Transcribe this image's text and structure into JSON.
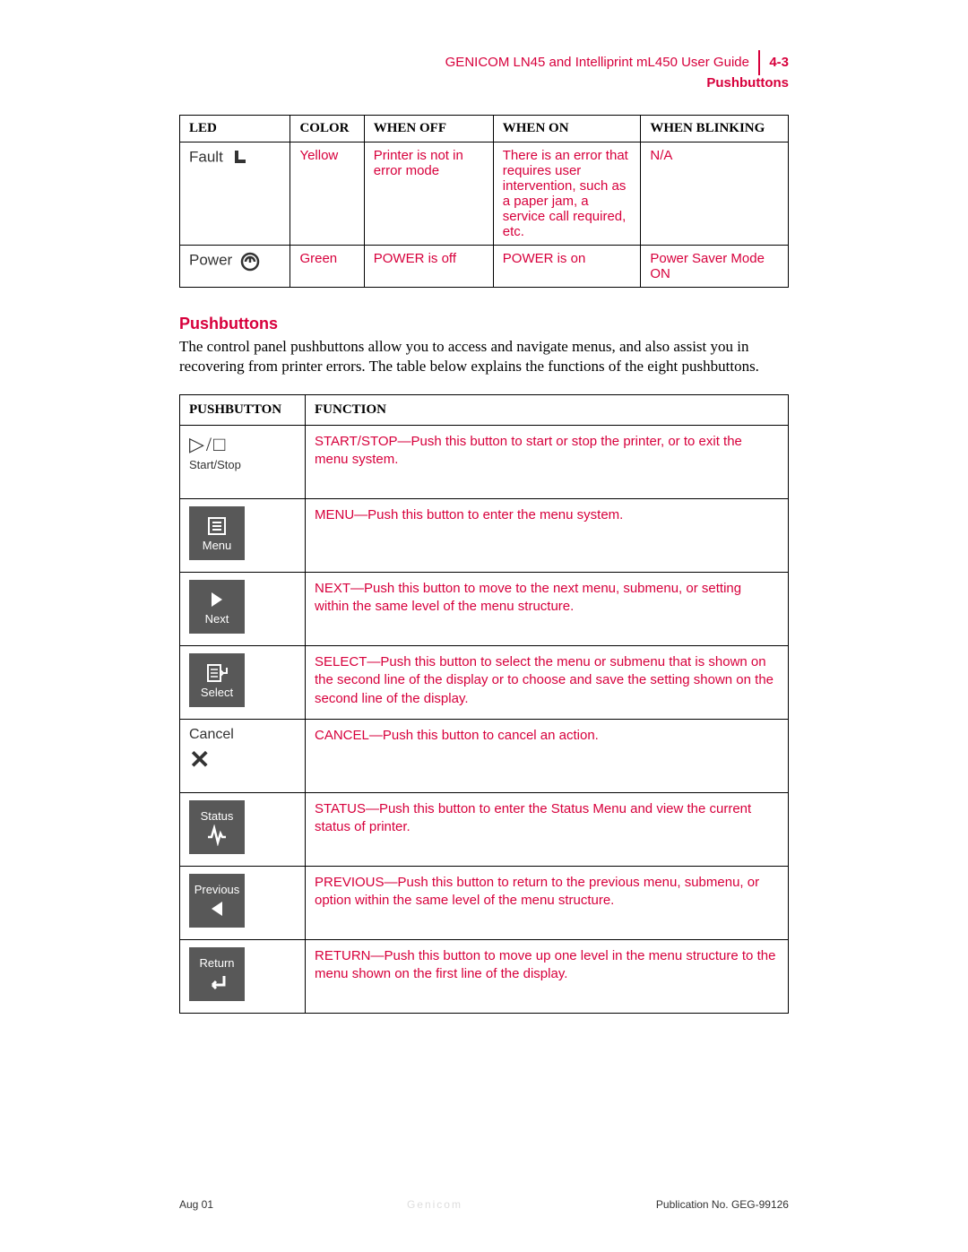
{
  "colors": {
    "accent": "#d7003c",
    "button_bg": "#585858",
    "button_fg": "#ffffff",
    "text": "#000000"
  },
  "header": {
    "title": "GENICOM LN45 and Intelliprint mL450 User Guide",
    "page_num": "4-3",
    "subtitle": "Pushbuttons"
  },
  "led_table": {
    "headers": [
      "LED",
      "COLOR",
      "WHEN OFF",
      "WHEN ON",
      "WHEN BLINKING"
    ],
    "col_widths": [
      "120px",
      "80px",
      "140px",
      "160px",
      "160px"
    ],
    "rows": [
      {
        "label": "Fault",
        "icon": "fault-icon",
        "color": "Yellow",
        "off": "Printer is not in error mode",
        "on": "There is an error that requires user intervention, such as a paper jam, a service call required, etc.",
        "blink": "N/A"
      },
      {
        "label": "Power",
        "icon": "power-icon",
        "color": "Green",
        "off": "POWER is off",
        "on": "POWER is on",
        "blink": "Power Saver Mode ON"
      }
    ]
  },
  "section": {
    "heading": "Pushbuttons",
    "paragraph": "The control panel pushbuttons allow you to access and navigate menus, and also assist you in recovering from printer errors. The table below explains the functions of the eight pushbuttons."
  },
  "pb_table": {
    "headers": [
      "PUSHBUTTON",
      "FUNCTION"
    ],
    "rows": [
      {
        "kind": "light",
        "label": "Start/Stop",
        "icon": "startstop-icon",
        "function": "START/STOP—Push this button to start or stop the printer, or to exit the menu system."
      },
      {
        "kind": "dark",
        "label": "Menu",
        "icon": "menu-icon",
        "label_pos": "bottom",
        "function": "MENU—Push this button to enter the menu system."
      },
      {
        "kind": "dark",
        "label": "Next",
        "icon": "next-icon",
        "label_pos": "bottom",
        "function": "NEXT—Push this button to move to the next menu, submenu, or setting within the same level of the menu structure."
      },
      {
        "kind": "dark",
        "label": "Select",
        "icon": "select-icon",
        "label_pos": "bottom",
        "function": "SELECT—Push this button to select the menu or submenu that is shown on the second line of the display or to choose and save the setting shown on the second line of the display."
      },
      {
        "kind": "light",
        "label": "Cancel",
        "icon": "cancel-icon",
        "function": "CANCEL—Push this button to cancel an action."
      },
      {
        "kind": "dark",
        "label": "Status",
        "icon": "status-icon",
        "label_pos": "top",
        "function": "STATUS—Push this button to enter the Status Menu and view the current status of printer."
      },
      {
        "kind": "dark",
        "label": "Previous",
        "icon": "previous-icon",
        "label_pos": "top",
        "function": "PREVIOUS—Push this button to return to the previous menu, submenu, or option within the same level of the menu structure."
      },
      {
        "kind": "dark",
        "label": "Return",
        "icon": "return-icon",
        "label_pos": "top",
        "function": "RETURN—Push this button to move up one level in the menu structure to the menu shown on the first line of the display."
      }
    ]
  },
  "footer": {
    "left": "Aug 01",
    "center": "Genicom",
    "right": "Publication No. GEG-99126"
  }
}
